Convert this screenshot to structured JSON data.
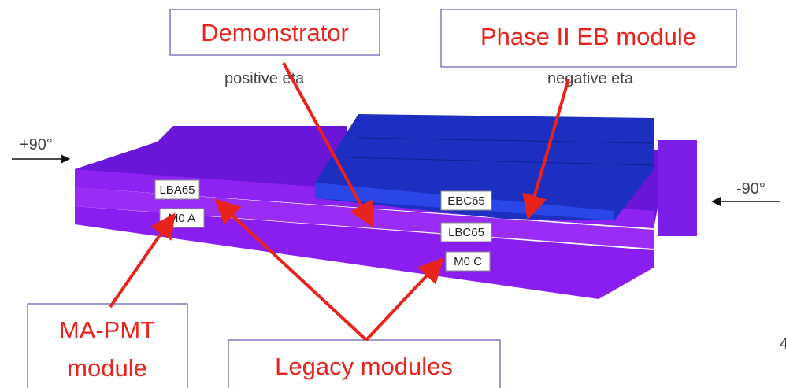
{
  "callouts": {
    "demonstrator": "Demonstrator",
    "phase2": "Phase II EB module",
    "mapmt": [
      "MA-PMT",
      "module"
    ],
    "legacy": "Legacy modules"
  },
  "eta": {
    "positive": "positive eta",
    "negative": "negative eta"
  },
  "angles": {
    "left": "+90°",
    "right": "-90°"
  },
  "module_labels": {
    "lba": "LBA65",
    "m0a": "M0 A",
    "ebc": "EBC65",
    "lbc": "LBC65",
    "m0c": "M0 C"
  },
  "page_number": "4"
}
